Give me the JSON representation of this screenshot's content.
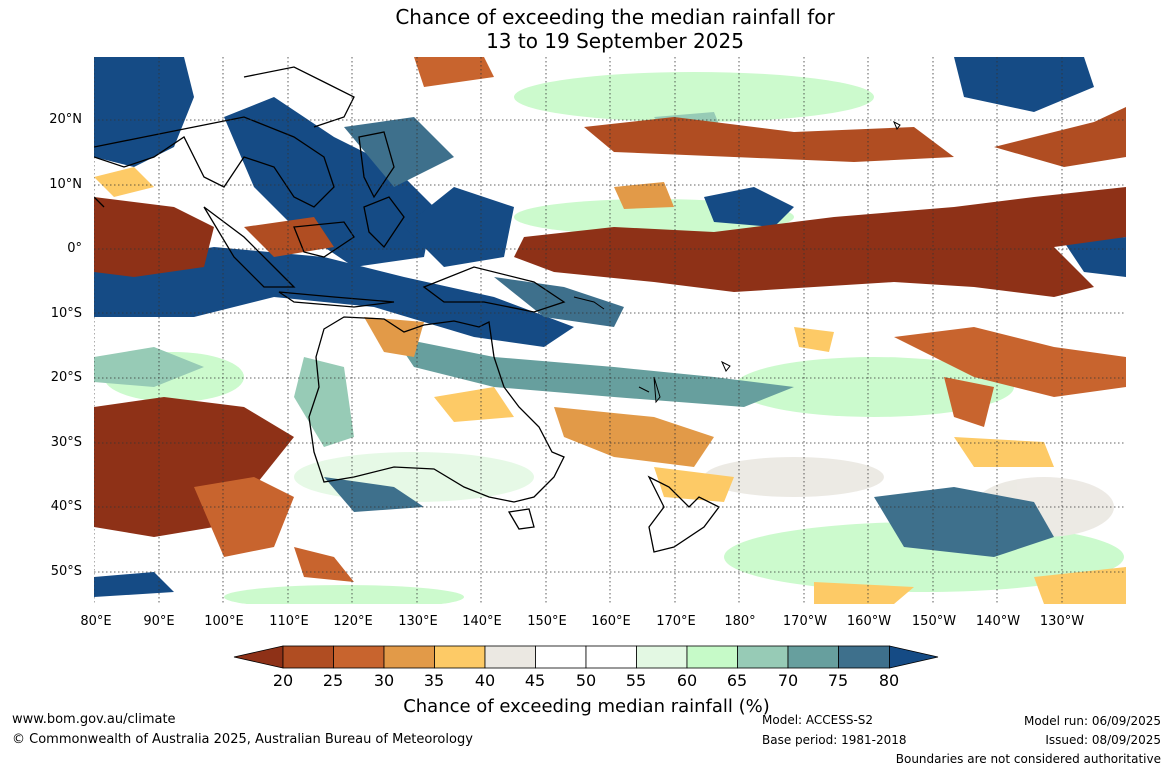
{
  "title": {
    "line1": "Chance of exceeding the median rainfall for",
    "line2": "13 to 19 September 2025"
  },
  "map": {
    "region": "Australia and Pacific",
    "lat_labels": [
      "20°N",
      "10°N",
      "0°",
      "10°S",
      "20°S",
      "30°S",
      "40°S",
      "50°S"
    ],
    "lon_labels": [
      "80°E",
      "90°E",
      "100°E",
      "110°E",
      "120°E",
      "130°E",
      "140°E",
      "150°E",
      "160°E",
      "170°E",
      "180°",
      "170°W",
      "160°W",
      "150°W",
      "140°W",
      "130°W"
    ]
  },
  "colorbar": {
    "title": "Chance of exceeding median rainfall (%)",
    "ticks": [
      "20",
      "25",
      "30",
      "35",
      "40",
      "45",
      "50",
      "55",
      "60",
      "65",
      "70",
      "75",
      "80"
    ],
    "colors": [
      "#8e3117",
      "#b04d22",
      "#c8642e",
      "#e29a48",
      "#fdca66",
      "#ebe8e2",
      "#ffffff",
      "#ffffff",
      "#e3f8e3",
      "#c6fac8",
      "#97cbb6",
      "#679f9e",
      "#3e708c",
      "#154b85"
    ]
  },
  "footer": {
    "website": "www.bom.gov.au/climate",
    "copyright": "© Commonwealth of Australia 2025, Australian Bureau of Meteorology",
    "model": "Model: ACCESS-S2",
    "base_period": "Base period: 1981-2018",
    "model_run": "Model run: 06/09/2025",
    "issued": "Issued: 08/09/2025",
    "disclaimer": "Boundaries are not considered authoritative"
  }
}
